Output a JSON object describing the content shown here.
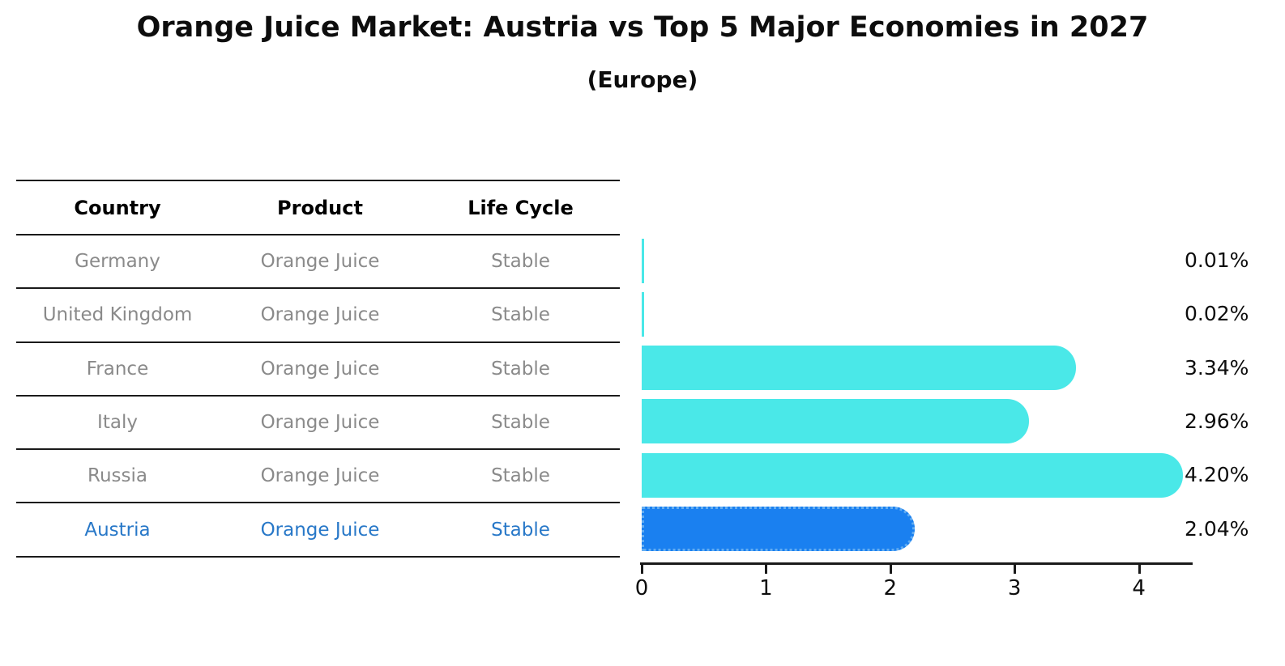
{
  "title": "Orange Juice Market: Austria vs Top 5 Major Economies in 2027",
  "subtitle": "(Europe)",
  "table": {
    "headers": [
      "Country",
      "Product",
      "Life Cycle"
    ],
    "rows": [
      {
        "country": "Germany",
        "product": "Orange Juice",
        "life_cycle": "Stable"
      },
      {
        "country": "United Kingdom",
        "product": "Orange Juice",
        "life_cycle": "Stable"
      },
      {
        "country": "France",
        "product": "Orange Juice",
        "life_cycle": "Stable"
      },
      {
        "country": "Italy",
        "product": "Orange Juice",
        "life_cycle": "Stable"
      },
      {
        "country": "Russia",
        "product": "Orange Juice",
        "life_cycle": "Stable"
      },
      {
        "country": "Austria",
        "product": "Orange Juice",
        "life_cycle": "Stable"
      }
    ]
  },
  "chart_data": {
    "type": "bar",
    "orientation": "horizontal",
    "title": "Orange Juice Market: Austria vs Top 5 Major Economies in 2027",
    "subtitle": "(Europe)",
    "categories": [
      "Germany",
      "United Kingdom",
      "France",
      "Italy",
      "Russia",
      "Austria"
    ],
    "values": [
      0.01,
      0.02,
      3.34,
      2.96,
      4.2,
      2.04
    ],
    "value_labels": [
      "0.01%",
      "0.02%",
      "3.34%",
      "2.96%",
      "4.20%",
      "2.04%"
    ],
    "x_ticks": [
      "0",
      "1",
      "2",
      "3",
      "4"
    ],
    "xlim": [
      0,
      4.42
    ],
    "grid": false,
    "legend": "none",
    "bar_color": "#4AE8E8",
    "highlight_index": 5,
    "highlight_color": "#1A80F0",
    "highlight_border_color": "#63adf2",
    "highlight_text_color": "#2878C8",
    "table_text_color": "#8a8a8a",
    "label_color": "#0d0d0d"
  }
}
